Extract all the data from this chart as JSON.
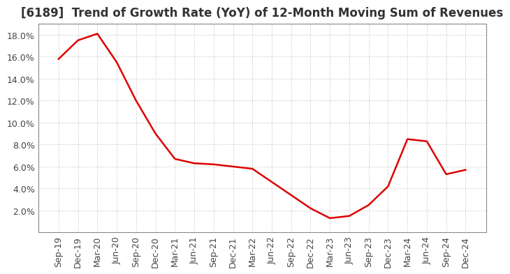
{
  "title": "[6189]  Trend of Growth Rate (YoY) of 12-Month Moving Sum of Revenues",
  "line_color": "#DD0000",
  "line_width": 1.8,
  "background_color": "#FFFFFF",
  "grid_color": "#AAAAAA",
  "x_labels": [
    "Sep-19",
    "Dec-19",
    "Mar-20",
    "Jun-20",
    "Sep-20",
    "Dec-20",
    "Mar-21",
    "Jun-21",
    "Sep-21",
    "Dec-21",
    "Mar-22",
    "Jun-22",
    "Sep-22",
    "Dec-22",
    "Mar-23",
    "Jun-23",
    "Sep-23",
    "Dec-23",
    "Mar-24",
    "Jun-24",
    "Sep-24",
    "Dec-24"
  ],
  "y_values": [
    0.158,
    0.175,
    0.181,
    0.155,
    0.12,
    0.09,
    0.067,
    0.063,
    0.062,
    0.06,
    0.058,
    0.046,
    0.034,
    0.022,
    0.013,
    0.015,
    0.025,
    0.042,
    0.085,
    0.083,
    0.053,
    0.057
  ],
  "ylim": [
    0.0,
    0.19
  ],
  "yticks": [
    0.02,
    0.04,
    0.06,
    0.08,
    0.1,
    0.12,
    0.14,
    0.16,
    0.18
  ],
  "title_fontsize": 12,
  "tick_fontsize": 9,
  "axis_bg_color": "#FFFFFF"
}
